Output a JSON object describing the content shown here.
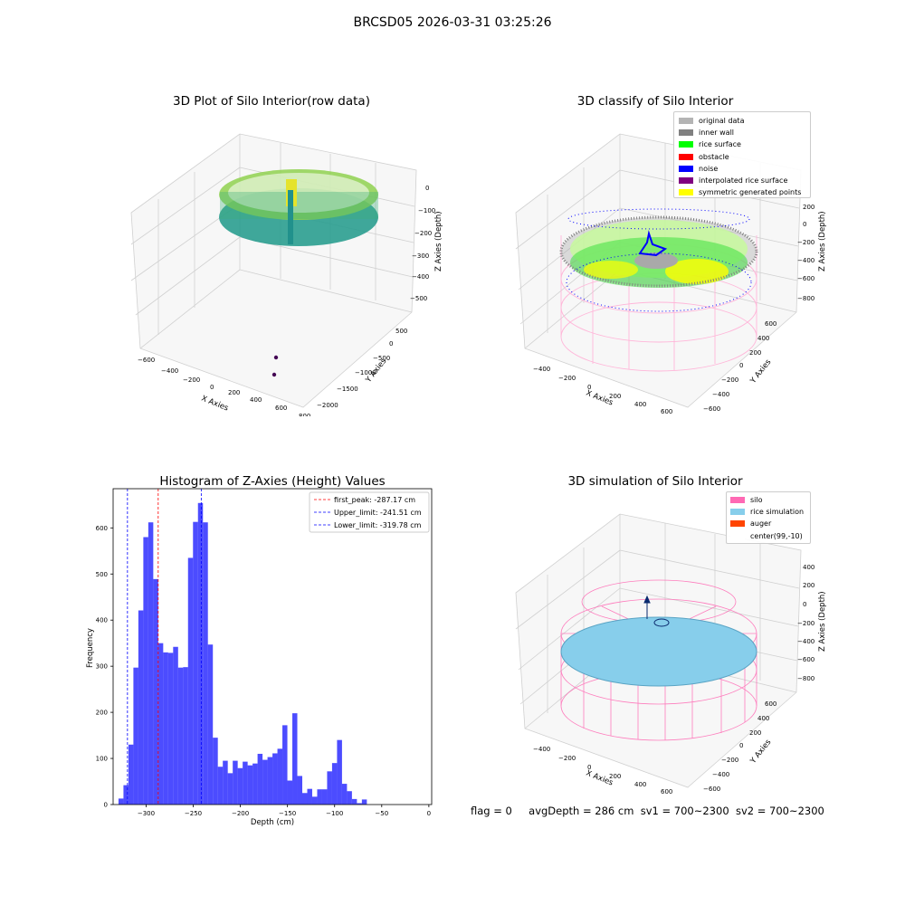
{
  "figure": {
    "suptitle": "BRCSD05 2026-03-31 03:25:26"
  },
  "panels": {
    "raw": {
      "title": "3D Plot of Silo Interior(row data)",
      "xlabel": "X Axies",
      "ylabel": "Y Axies",
      "zlabel": "Z Axies (Depth)",
      "xticks": [
        "−600",
        "−400",
        "−200",
        "0",
        "200",
        "400",
        "600",
        "800"
      ],
      "yticks": [
        "500",
        "0",
        "−500",
        "−1000",
        "−1500",
        "−2000"
      ],
      "zticks": [
        "0",
        "−100",
        "−200",
        "−300",
        "−400",
        "−500"
      ]
    },
    "classify": {
      "title": "3D classify of Silo Interior",
      "xlabel": "X Axies",
      "ylabel": "Y Axies",
      "zlabel": "Z Axies (Depth)",
      "xticks": [
        "−400",
        "−200",
        "0",
        "200",
        "400",
        "600"
      ],
      "yticks": [
        "600",
        "400",
        "200",
        "0",
        "−200",
        "−400",
        "−600"
      ],
      "zticks": [
        "200",
        "0",
        "−200",
        "−400",
        "−600",
        "−800"
      ],
      "legend": [
        {
          "label": "original data",
          "color": "#b4b4b4"
        },
        {
          "label": "inner wall",
          "color": "#808080"
        },
        {
          "label": "rice surface",
          "color": "#00ff00"
        },
        {
          "label": "obstacle",
          "color": "#ff0000"
        },
        {
          "label": "noise",
          "color": "#0000ff"
        },
        {
          "label": "interpolated rice surface",
          "color": "#800080"
        },
        {
          "label": "symmetric generated points",
          "color": "#ffff00"
        }
      ]
    },
    "simulation": {
      "title": "3D simulation of Silo Interior",
      "xlabel": "X Axies",
      "ylabel": "Y Axies",
      "zlabel": "Z Axies (Depth)",
      "xticks": [
        "−400",
        "−200",
        "0",
        "200",
        "400",
        "600"
      ],
      "yticks": [
        "600",
        "400",
        "200",
        "0",
        "−200",
        "−400",
        "−600"
      ],
      "zticks": [
        "400",
        "200",
        "0",
        "−200",
        "−400",
        "−600",
        "−800"
      ],
      "legend": [
        {
          "label": "silo",
          "color": "#ff69b4"
        },
        {
          "label": "rice simulation",
          "color": "#87ceeb"
        },
        {
          "label": "auger",
          "color": "#ff4500"
        },
        {
          "label": "center(99,-10)",
          "color": "#ffffff"
        }
      ]
    }
  },
  "status": {
    "flag": "flag = 0",
    "avg_depth": "avgDepth = 286 cm",
    "sv1": "sv1 = 700~2300",
    "sv2": "sv2 = 700~2300"
  },
  "chart_data": {
    "type": "bar",
    "title": "Histogram of Z-Axies (Height) Values",
    "xlabel": "Depth (cm)",
    "ylabel": "Frequency",
    "xlim": [
      -335,
      3
    ],
    "ylim": [
      0,
      685
    ],
    "bar_color": "#0000ff",
    "bin_edges_start": -329.3,
    "bin_width": 5.27,
    "values": [
      13,
      42,
      130,
      297,
      421,
      580,
      612,
      489,
      350,
      330,
      329,
      342,
      297,
      298,
      535,
      613,
      654,
      612,
      347,
      145,
      82,
      95,
      68,
      95,
      79,
      93,
      85,
      89,
      110,
      97,
      103,
      111,
      121,
      172,
      52,
      198,
      62,
      25,
      34,
      17,
      33,
      33,
      72,
      90,
      140,
      45,
      29,
      12,
      3,
      11
    ],
    "xticks": [
      -300,
      -250,
      -200,
      -150,
      -100,
      -50,
      0
    ],
    "yticks": [
      0,
      100,
      200,
      300,
      400,
      500,
      600
    ],
    "vlines": [
      {
        "label": "first_peak: -287.17 cm",
        "x": -287.17,
        "color": "#ff0000"
      },
      {
        "label": "Upper_limit: -241.51 cm",
        "x": -241.51,
        "color": "#0000ff"
      },
      {
        "label": "Lower_limit: -319.78 cm",
        "x": -319.78,
        "color": "#0000ff"
      }
    ],
    "legend_position": "top-right"
  }
}
